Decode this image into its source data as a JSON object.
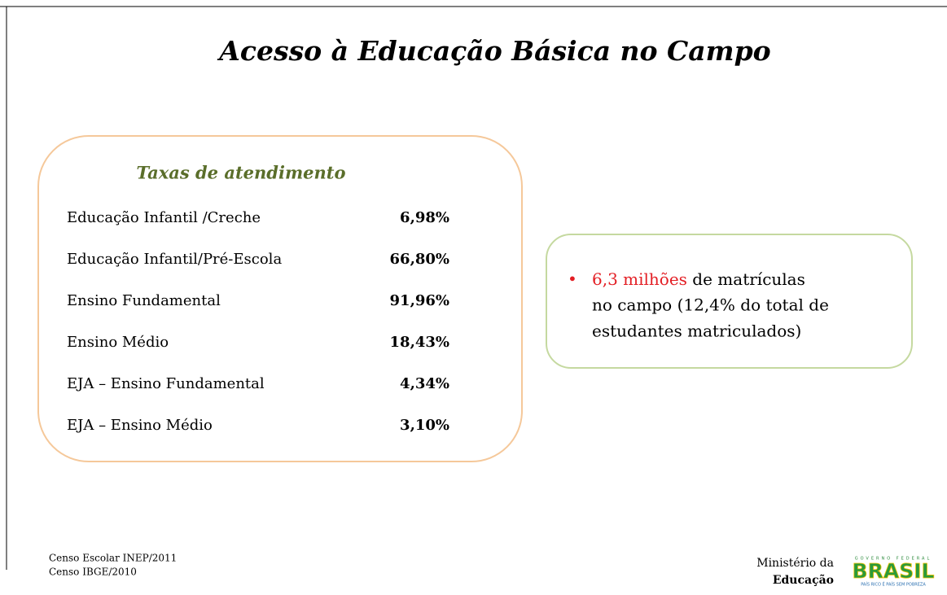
{
  "slide": {
    "title": "Acesso à Educação Básica no Campo",
    "rates": {
      "title": "Taxas de atendimento",
      "rows": [
        {
          "label": "Educação Infantil /Creche",
          "value": "6,98%"
        },
        {
          "label": "Educação Infantil/Pré-Escola",
          "value": "66,80%"
        },
        {
          "label": "Ensino Fundamental",
          "value": "91,96%"
        },
        {
          "label": "Ensino Médio",
          "value": "18,43%"
        },
        {
          "label": "EJA – Ensino Fundamental",
          "value": "4,34%"
        },
        {
          "label": "EJA – Ensino Médio",
          "value": "3,10%"
        }
      ]
    },
    "bullet": {
      "highlight": "6,3 milhões",
      "lines": [
        " de matrículas",
        "no campo (12,4% do total de",
        "estudantes matriculados)"
      ]
    },
    "sources": [
      "Censo Escolar INEP/2011",
      "Censo  IBGE/2010"
    ],
    "footer": {
      "ministry": [
        "Ministério da",
        "Educação"
      ],
      "logo": {
        "top": "GOVERNO FEDERAL",
        "name": "BRASIL",
        "slogan": "PAÍS RICO É PAÍS SEM POBREZA"
      }
    }
  }
}
